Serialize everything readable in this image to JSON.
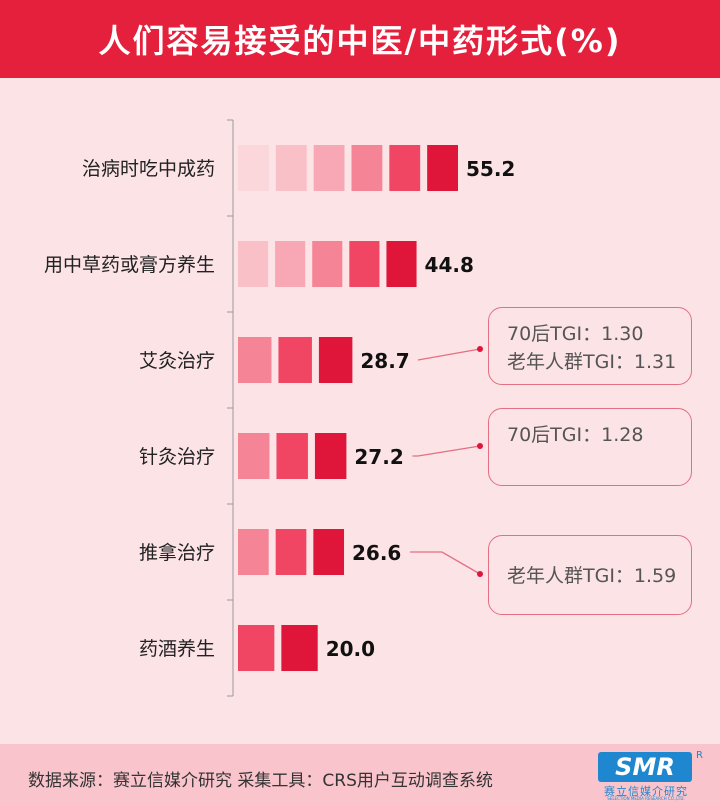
{
  "header": {
    "title": "人们容易接受的中医/中药形式(%)"
  },
  "footer": {
    "source": "数据来源：赛立信媒介研究 采集工具：CRS用户互动调查系统",
    "logo": {
      "mark": "SMR",
      "reg": "R",
      "cn": "赛立信媒介研究",
      "en": "SELECTION MEDIA RESEARCH CO.,LTD."
    }
  },
  "chart_data": {
    "type": "bar",
    "orientation": "horizontal",
    "categories": [
      "治病时吃中成药",
      "用中草药或膏方养生",
      "艾灸治疗",
      "针灸治疗",
      "推拿治疗",
      "药酒养生"
    ],
    "values": [
      55.2,
      44.8,
      28.7,
      27.2,
      26.6,
      20.0
    ],
    "value_labels": [
      "55.2",
      "44.8",
      "28.7",
      "27.2",
      "26.6",
      "20.0"
    ],
    "title": "人们容易接受的中医/中药形式(%)",
    "xlabel": "",
    "ylabel": "",
    "xlim": [
      0,
      60
    ],
    "grid": false,
    "colors": [
      "#fbd6db",
      "#f9c0c8",
      "#f7a8b4",
      "#f58497",
      "#f04563",
      "#e0153a"
    ],
    "annotations": [
      {
        "category": "艾灸治疗",
        "lines": [
          "70后TGI：1.30",
          "老年人群TGI：1.31"
        ]
      },
      {
        "category": "针灸治疗",
        "lines": [
          "70后TGI：1.28"
        ]
      },
      {
        "category": "推拿治疗",
        "lines": [
          "老年人群TGI：1.59"
        ]
      }
    ]
  }
}
